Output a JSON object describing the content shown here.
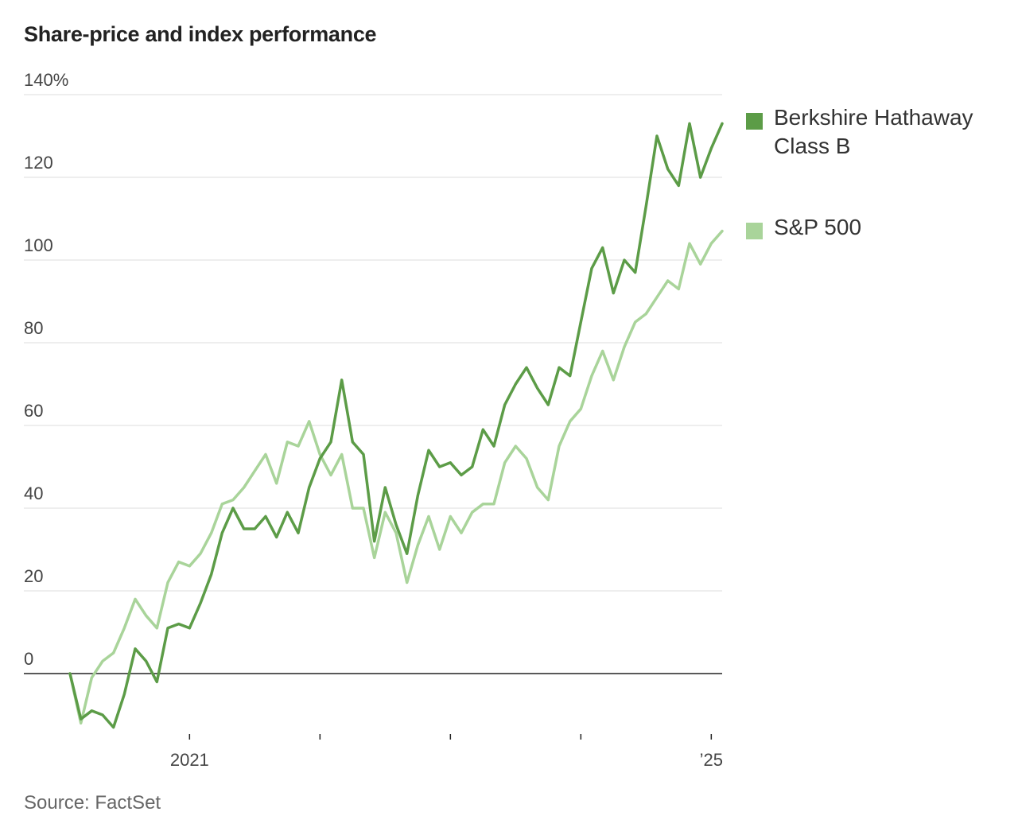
{
  "chart_data": {
    "type": "line",
    "title": "Share-price and index performance",
    "xlabel": "",
    "ylabel": "",
    "y_unit_suffix": "%",
    "ylim": [
      -16,
      140
    ],
    "y_ticks": [
      0,
      20,
      40,
      60,
      80,
      100,
      120,
      140
    ],
    "y_tick_labels": [
      "0",
      "20",
      "40",
      "60",
      "80",
      "100",
      "120",
      "140%"
    ],
    "x_period": "monthly, May 2020 - Jan 2025",
    "x_ticks": [
      {
        "index": 11,
        "label": "2021"
      },
      {
        "index": 23,
        "label": ""
      },
      {
        "index": 35,
        "label": ""
      },
      {
        "index": 47,
        "label": ""
      },
      {
        "index": 59,
        "label": "’25"
      }
    ],
    "grid": true,
    "legend_position": "right",
    "series": [
      {
        "name": "Berkshire Hathaway Class B",
        "color": "#5c9c47",
        "values": [
          0,
          -11,
          -9,
          -10,
          -13,
          -5,
          6,
          3,
          -2,
          11,
          12,
          11,
          17,
          24,
          34,
          40,
          35,
          35,
          38,
          33,
          39,
          34,
          45,
          52,
          56,
          71,
          56,
          53,
          32,
          45,
          36,
          29,
          43,
          54,
          50,
          51,
          48,
          50,
          59,
          55,
          65,
          70,
          74,
          69,
          65,
          74,
          72,
          85,
          98,
          103,
          92,
          100,
          97,
          113,
          130,
          122,
          118,
          133,
          120,
          127,
          133
        ]
      },
      {
        "name": "S&P 500",
        "color": "#a9d49a",
        "values": [
          0,
          -12,
          -1,
          3,
          5,
          11,
          18,
          14,
          11,
          22,
          27,
          26,
          29,
          34,
          41,
          42,
          45,
          49,
          53,
          46,
          56,
          55,
          61,
          53,
          48,
          53,
          40,
          40,
          28,
          39,
          34,
          22,
          31,
          38,
          30,
          38,
          34,
          39,
          41,
          41,
          51,
          55,
          52,
          45,
          42,
          55,
          61,
          64,
          72,
          78,
          71,
          79,
          85,
          87,
          91,
          95,
          93,
          104,
          99,
          104,
          107
        ]
      }
    ]
  },
  "source": "Source: FactSet"
}
